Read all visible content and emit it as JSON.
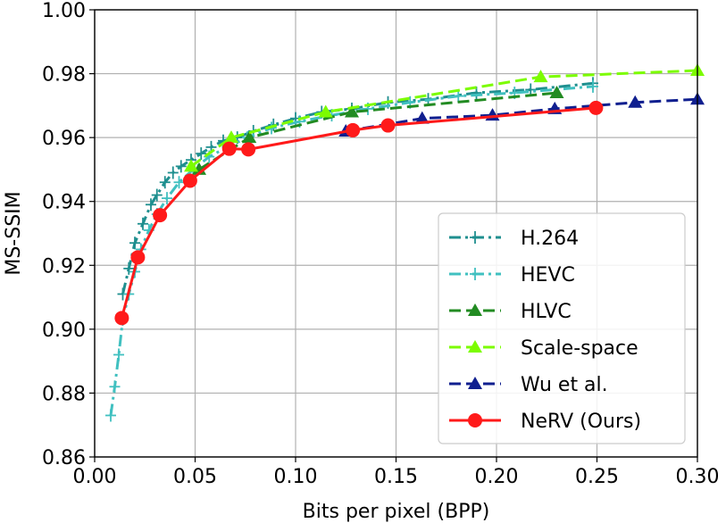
{
  "chart_data": {
    "type": "line",
    "title": "",
    "xlabel": "Bits per pixel (BPP)",
    "ylabel": "MS-SSIM",
    "xlim": [
      0.0,
      0.3
    ],
    "ylim": [
      0.86,
      1.0
    ],
    "xticks": [
      0.0,
      0.05,
      0.1,
      0.15,
      0.2,
      0.25,
      0.3
    ],
    "yticks": [
      0.86,
      0.88,
      0.9,
      0.92,
      0.94,
      0.96,
      0.98,
      1.0
    ],
    "xtick_labels": [
      "0.00",
      "0.05",
      "0.10",
      "0.15",
      "0.20",
      "0.25",
      "0.30"
    ],
    "ytick_labels": [
      "0.86",
      "0.88",
      "0.90",
      "0.92",
      "0.94",
      "0.96",
      "0.98",
      "1.00"
    ],
    "grid": true,
    "legend_position": "lower-right",
    "series": [
      {
        "name": "H.264",
        "color": "#1f8f8f",
        "dash": "dashdot",
        "marker": "plus",
        "x": [
          0.014,
          0.017,
          0.02,
          0.024,
          0.028,
          0.031,
          0.035,
          0.039,
          0.043,
          0.048,
          0.053,
          0.058,
          0.064,
          0.071,
          0.079,
          0.089,
          0.1,
          0.113,
          0.128,
          0.146,
          0.166,
          0.19,
          0.217,
          0.248
        ],
        "y": [
          0.911,
          0.919,
          0.927,
          0.933,
          0.939,
          0.942,
          0.946,
          0.949,
          0.951,
          0.953,
          0.955,
          0.957,
          0.959,
          0.96,
          0.962,
          0.964,
          0.966,
          0.968,
          0.969,
          0.971,
          0.972,
          0.974,
          0.975,
          0.977
        ]
      },
      {
        "name": "HEVC",
        "color": "#40c0c0",
        "dash": "dashdot",
        "marker": "plus",
        "x": [
          0.008,
          0.01,
          0.012,
          0.014,
          0.017,
          0.02,
          0.023,
          0.027,
          0.031,
          0.036,
          0.042,
          0.049,
          0.057,
          0.066,
          0.076,
          0.088,
          0.102,
          0.118,
          0.136,
          0.157,
          0.181,
          0.209,
          0.248
        ],
        "y": [
          0.873,
          0.882,
          0.892,
          0.903,
          0.911,
          0.918,
          0.925,
          0.931,
          0.936,
          0.941,
          0.946,
          0.95,
          0.954,
          0.957,
          0.96,
          0.963,
          0.965,
          0.967,
          0.969,
          0.971,
          0.973,
          0.974,
          0.976
        ]
      },
      {
        "name": "HLVC",
        "color": "#228b22",
        "dash": "dashed",
        "marker": "triangle",
        "x": [
          0.052,
          0.077,
          0.128,
          0.23
        ],
        "y": [
          0.95,
          0.96,
          0.968,
          0.974
        ]
      },
      {
        "name": "Scale-space",
        "color": "#7cfc00",
        "dash": "dashed",
        "marker": "triangle",
        "x": [
          0.048,
          0.068,
          0.115,
          0.222,
          0.3
        ],
        "y": [
          0.951,
          0.96,
          0.968,
          0.979,
          0.981
        ]
      },
      {
        "name": "Wu et al.",
        "color": "#101f8f",
        "dash": "dashed",
        "marker": "triangle",
        "x": [
          0.125,
          0.163,
          0.198,
          0.229,
          0.269,
          0.3
        ],
        "y": [
          0.962,
          0.966,
          0.967,
          0.969,
          0.971,
          0.972
        ]
      },
      {
        "name": "NeRV (Ours)",
        "color": "#ff1a1a",
        "dash": "solid",
        "marker": "circle",
        "x": [
          0.0135,
          0.0215,
          0.0325,
          0.0475,
          0.067,
          0.0765,
          0.1285,
          0.146,
          0.2495
        ],
        "y": [
          0.9035,
          0.9225,
          0.9357,
          0.9465,
          0.9565,
          0.9563,
          0.9623,
          0.9638,
          0.9693
        ]
      }
    ]
  }
}
